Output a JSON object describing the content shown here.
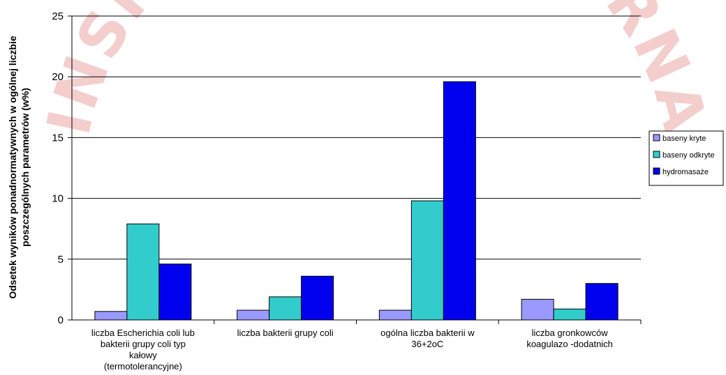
{
  "watermark_text": "INSPEKCJA SANITARNA",
  "chart_data": {
    "type": "bar",
    "title": "",
    "xlabel": "",
    "ylabel_lines": [
      "Odsetek wyników ponadnormatywnych w ogólnej liczbie",
      "poszczególnych parametrów (w%)"
    ],
    "ylim": [
      0,
      25
    ],
    "yticks": [
      0,
      5,
      10,
      15,
      20,
      25
    ],
    "grid": true,
    "legend_position": "right",
    "categories": [
      [
        "liczba Escherichia coli lub",
        "bakterii grupy coli typ",
        "kałowy",
        "(termotolerancyjne)"
      ],
      [
        "liczba bakterii grupy coli"
      ],
      [
        "ogólna liczba bakterii w",
        "36+2oC"
      ],
      [
        "liczba gronkowców",
        "koagulazo -dodatnich"
      ]
    ],
    "series": [
      {
        "name": "baseny kryte",
        "color": "#9999ff",
        "values": [
          0.7,
          0.8,
          0.8,
          1.7
        ]
      },
      {
        "name": "baseny odkryte",
        "color": "#33cccc",
        "values": [
          7.9,
          1.9,
          9.8,
          0.9
        ]
      },
      {
        "name": "hydromasaże",
        "color": "#0000ee",
        "values": [
          4.6,
          3.6,
          19.6,
          3.0
        ]
      }
    ]
  }
}
